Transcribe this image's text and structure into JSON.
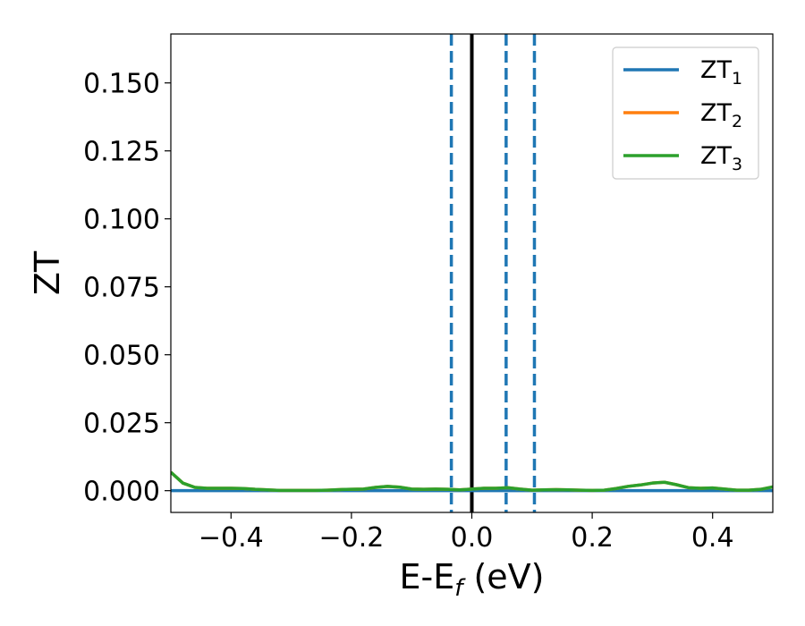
{
  "chart_data": {
    "type": "line",
    "xlabel": "E-E",
    "xlabel_sub": "f",
    "xlabel_unit": " (eV)",
    "ylabel": "ZT",
    "xlim": [
      -0.5,
      0.5
    ],
    "ylim": [
      -0.008,
      0.168
    ],
    "xticks": [
      {
        "value": -0.4,
        "label": "−0.4"
      },
      {
        "value": -0.2,
        "label": "−0.2"
      },
      {
        "value": 0.0,
        "label": "0.0"
      },
      {
        "value": 0.2,
        "label": "0.2"
      },
      {
        "value": 0.4,
        "label": "0.4"
      }
    ],
    "yticks": [
      {
        "value": 0.0,
        "label": "0.000"
      },
      {
        "value": 0.025,
        "label": "0.025"
      },
      {
        "value": 0.05,
        "label": "0.050"
      },
      {
        "value": 0.075,
        "label": "0.075"
      },
      {
        "value": 0.1,
        "label": "0.100"
      },
      {
        "value": 0.125,
        "label": "0.125"
      },
      {
        "value": 0.15,
        "label": "0.150"
      }
    ],
    "grid": false,
    "legend_position": "top-right",
    "series": [
      {
        "name": "ZT",
        "name_sub": "1",
        "color": "#1f77b4",
        "x": [
          -0.5,
          0.5
        ],
        "y": [
          0.0,
          0.0
        ]
      },
      {
        "name": "ZT",
        "name_sub": "2",
        "color": "#ff7f0e",
        "x": [
          -0.5,
          -0.48,
          -0.46,
          -0.44,
          -0.42,
          -0.4,
          -0.38,
          -0.36,
          -0.34,
          -0.32,
          -0.3,
          -0.28,
          -0.26,
          -0.24,
          -0.22,
          -0.2,
          -0.18,
          -0.16,
          -0.14,
          -0.12,
          -0.1,
          -0.08,
          -0.06,
          -0.04,
          -0.02,
          0.0,
          0.02,
          0.04,
          0.06,
          0.08,
          0.1,
          0.12,
          0.14,
          0.16,
          0.18,
          0.2,
          0.22,
          0.24,
          0.26,
          0.28,
          0.3,
          0.32,
          0.34,
          0.36,
          0.38,
          0.4,
          0.42,
          0.44,
          0.46,
          0.48,
          0.5
        ],
        "y": [
          0.0068,
          0.0028,
          0.0012,
          0.0009,
          0.0009,
          0.0009,
          0.0008,
          0.0005,
          0.0003,
          0.0001,
          0.0001,
          0.0001,
          0.0001,
          0.0002,
          0.0004,
          0.0005,
          0.0006,
          0.0012,
          0.0016,
          0.0013,
          0.0006,
          0.0005,
          0.0006,
          0.0005,
          0.0003,
          0.0006,
          0.0009,
          0.0009,
          0.0011,
          0.0006,
          0.0002,
          0.0003,
          0.0004,
          0.0003,
          0.0002,
          0.0001,
          0.0002,
          0.0008,
          0.0016,
          0.0021,
          0.0028,
          0.0031,
          0.0022,
          0.0011,
          0.0009,
          0.001,
          0.0006,
          0.0002,
          0.0002,
          0.0005,
          0.0014
        ]
      },
      {
        "name": "ZT",
        "name_sub": "3",
        "color": "#2ca02c",
        "x": [
          -0.5,
          -0.48,
          -0.46,
          -0.44,
          -0.42,
          -0.4,
          -0.38,
          -0.36,
          -0.34,
          -0.32,
          -0.3,
          -0.28,
          -0.26,
          -0.24,
          -0.22,
          -0.2,
          -0.18,
          -0.16,
          -0.14,
          -0.12,
          -0.1,
          -0.08,
          -0.06,
          -0.04,
          -0.02,
          0.0,
          0.02,
          0.04,
          0.06,
          0.08,
          0.1,
          0.12,
          0.14,
          0.16,
          0.18,
          0.2,
          0.22,
          0.24,
          0.26,
          0.28,
          0.3,
          0.32,
          0.34,
          0.36,
          0.38,
          0.4,
          0.42,
          0.44,
          0.46,
          0.48,
          0.5
        ],
        "y": [
          0.0068,
          0.0028,
          0.0012,
          0.0009,
          0.0009,
          0.0009,
          0.0008,
          0.0005,
          0.0003,
          0.0001,
          0.0001,
          0.0001,
          0.0001,
          0.0002,
          0.0004,
          0.0005,
          0.0006,
          0.0012,
          0.0016,
          0.0013,
          0.0006,
          0.0005,
          0.0006,
          0.0005,
          0.0003,
          0.0006,
          0.0009,
          0.0009,
          0.0011,
          0.0006,
          0.0002,
          0.0003,
          0.0004,
          0.0003,
          0.0002,
          0.0001,
          0.0002,
          0.0008,
          0.0016,
          0.0021,
          0.0028,
          0.0031,
          0.0022,
          0.0011,
          0.0009,
          0.001,
          0.0006,
          0.0002,
          0.0002,
          0.0005,
          0.0014
        ]
      }
    ],
    "vertical_lines": [
      {
        "x": -0.034,
        "style": "dashed",
        "color": "#1f77b4"
      },
      {
        "x": 0.0,
        "style": "solid",
        "color": "#000000"
      },
      {
        "x": 0.057,
        "style": "dashed",
        "color": "#1f77b4"
      },
      {
        "x": 0.104,
        "style": "dashed",
        "color": "#1f77b4"
      }
    ]
  }
}
